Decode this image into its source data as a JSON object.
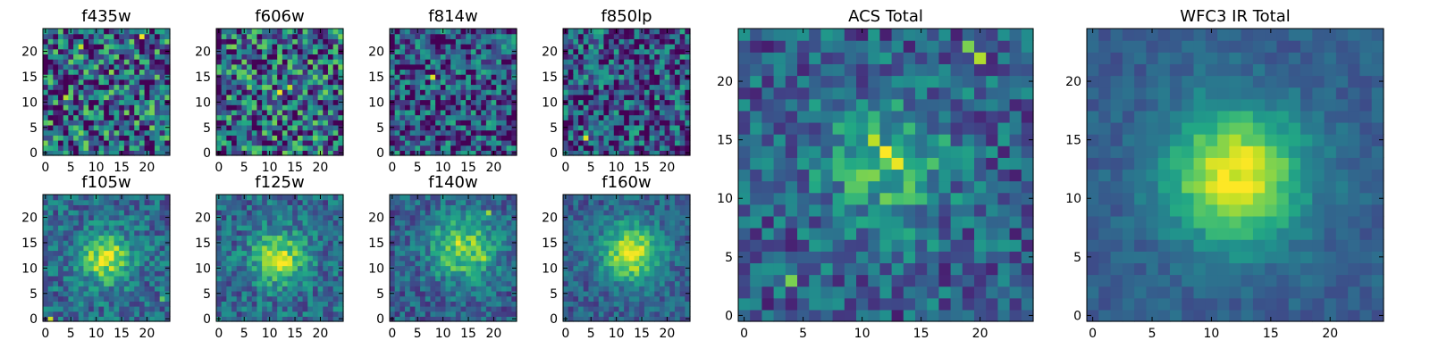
{
  "colormap": "viridis",
  "chart_data": [
    {
      "type": "heatmap",
      "title": "f435w",
      "grid_size": 25,
      "xticks": [
        0,
        5,
        10,
        15,
        20
      ],
      "yticks": [
        0,
        5,
        10,
        15,
        20
      ],
      "pattern": "noise",
      "seed": 11,
      "noise": 1.0,
      "bias": 0.0,
      "hotspots": [
        {
          "x": 19,
          "y": 23,
          "v": 0.98
        },
        {
          "x": 7,
          "y": 21,
          "v": 0.9
        },
        {
          "x": 4,
          "y": 11,
          "v": 0.88
        },
        {
          "x": 13,
          "y": 16,
          "v": 0.82
        },
        {
          "x": 0,
          "y": 2,
          "v": 0.8
        }
      ]
    },
    {
      "type": "heatmap",
      "title": "f606w",
      "grid_size": 25,
      "xticks": [
        0,
        5,
        10,
        15,
        20
      ],
      "yticks": [
        0,
        5,
        10,
        15,
        20
      ],
      "pattern": "noise",
      "seed": 23,
      "noise": 1.0,
      "bias": 0.0,
      "hotspots": [
        {
          "x": 12,
          "y": 12,
          "v": 0.98
        },
        {
          "x": 14,
          "y": 13,
          "v": 0.9
        },
        {
          "x": 6,
          "y": 15,
          "v": 0.82
        },
        {
          "x": 19,
          "y": 6,
          "v": 0.78
        }
      ]
    },
    {
      "type": "heatmap",
      "title": "f814w",
      "grid_size": 25,
      "xticks": [
        0,
        5,
        10,
        15,
        20
      ],
      "yticks": [
        0,
        5,
        10,
        15,
        20
      ],
      "pattern": "noise",
      "seed": 37,
      "noise": 0.85,
      "bias": -0.1,
      "hotspots": [
        {
          "x": 8,
          "y": 15,
          "v": 0.95
        }
      ]
    },
    {
      "type": "heatmap",
      "title": "f850lp",
      "grid_size": 25,
      "xticks": [
        0,
        5,
        10,
        15,
        20
      ],
      "yticks": [
        0,
        5,
        10,
        15,
        20
      ],
      "pattern": "noise",
      "seed": 41,
      "noise": 0.85,
      "bias": -0.1,
      "hotspots": [
        {
          "x": 4,
          "y": 3,
          "v": 0.95
        }
      ]
    },
    {
      "type": "heatmap",
      "title": "f105w",
      "grid_size": 25,
      "xticks": [
        0,
        5,
        10,
        15,
        20
      ],
      "yticks": [
        0,
        5,
        10,
        15,
        20
      ],
      "pattern": "blob",
      "seed": 53,
      "noise": 0.45,
      "bias": 0.0,
      "center": [
        12,
        12
      ],
      "sigma": 3.5,
      "amp": 0.55,
      "hotspots": [
        {
          "x": 12,
          "y": 11,
          "v": 0.95
        },
        {
          "x": 1,
          "y": 0,
          "v": 0.92
        },
        {
          "x": 23,
          "y": 4,
          "v": 0.75
        }
      ]
    },
    {
      "type": "heatmap",
      "title": "f125w",
      "grid_size": 25,
      "xticks": [
        0,
        5,
        10,
        15,
        20
      ],
      "yticks": [
        0,
        5,
        10,
        15,
        20
      ],
      "pattern": "blob",
      "seed": 67,
      "noise": 0.45,
      "bias": 0.0,
      "center": [
        12,
        12
      ],
      "sigma": 3.5,
      "amp": 0.55,
      "hotspots": [
        {
          "x": 12,
          "y": 12,
          "v": 0.95
        },
        {
          "x": 13,
          "y": 12,
          "v": 0.88
        }
      ]
    },
    {
      "type": "heatmap",
      "title": "f140w",
      "grid_size": 25,
      "xticks": [
        0,
        5,
        10,
        15,
        20
      ],
      "yticks": [
        0,
        5,
        10,
        15,
        20
      ],
      "pattern": "blob",
      "seed": 79,
      "noise": 0.4,
      "bias": -0.05,
      "center": [
        14,
        14
      ],
      "sigma": 4.5,
      "amp": 0.5,
      "hotspots": [
        {
          "x": 13,
          "y": 15,
          "v": 0.98
        },
        {
          "x": 18,
          "y": 12,
          "v": 0.9
        },
        {
          "x": 19,
          "y": 21,
          "v": 0.85
        },
        {
          "x": 12,
          "y": 10,
          "v": 0.8
        }
      ]
    },
    {
      "type": "heatmap",
      "title": "f160w",
      "grid_size": 25,
      "xticks": [
        0,
        5,
        10,
        15,
        20
      ],
      "yticks": [
        0,
        5,
        10,
        15,
        20
      ],
      "pattern": "blob",
      "seed": 83,
      "noise": 0.35,
      "bias": -0.05,
      "center": [
        13,
        13
      ],
      "sigma": 4.0,
      "amp": 0.65,
      "hotspots": [
        {
          "x": 13,
          "y": 13,
          "v": 0.98
        },
        {
          "x": 12,
          "y": 14,
          "v": 0.95
        },
        {
          "x": 16,
          "y": 15,
          "v": 0.85
        }
      ]
    },
    {
      "type": "heatmap",
      "title": "ACS Total",
      "grid_size": 25,
      "xticks": [
        0,
        5,
        10,
        15,
        20
      ],
      "yticks": [
        0,
        5,
        10,
        15,
        20
      ],
      "pattern": "blob",
      "seed": 97,
      "noise": 0.5,
      "bias": -0.05,
      "center": [
        12,
        13
      ],
      "sigma": 4.0,
      "amp": 0.35,
      "hotspots": [
        {
          "x": 12,
          "y": 14,
          "v": 1.0
        },
        {
          "x": 13,
          "y": 13,
          "v": 0.97
        },
        {
          "x": 11,
          "y": 15,
          "v": 0.9
        },
        {
          "x": 20,
          "y": 22,
          "v": 0.88
        },
        {
          "x": 19,
          "y": 23,
          "v": 0.8
        },
        {
          "x": 4,
          "y": 3,
          "v": 0.8
        },
        {
          "x": 12,
          "y": 10,
          "v": 0.78
        }
      ]
    },
    {
      "type": "heatmap",
      "title": "WFC3 IR Total",
      "grid_size": 25,
      "xticks": [
        0,
        5,
        10,
        15,
        20
      ],
      "yticks": [
        0,
        5,
        10,
        15,
        20
      ],
      "pattern": "blob",
      "seed": 101,
      "noise": 0.18,
      "bias": -0.05,
      "center": [
        12,
        12
      ],
      "sigma": 4.0,
      "amp": 0.7,
      "hotspots": [
        {
          "x": 12,
          "y": 11,
          "v": 1.0
        },
        {
          "x": 13,
          "y": 12,
          "v": 0.95
        },
        {
          "x": 12,
          "y": 12,
          "v": 0.9
        }
      ]
    }
  ]
}
